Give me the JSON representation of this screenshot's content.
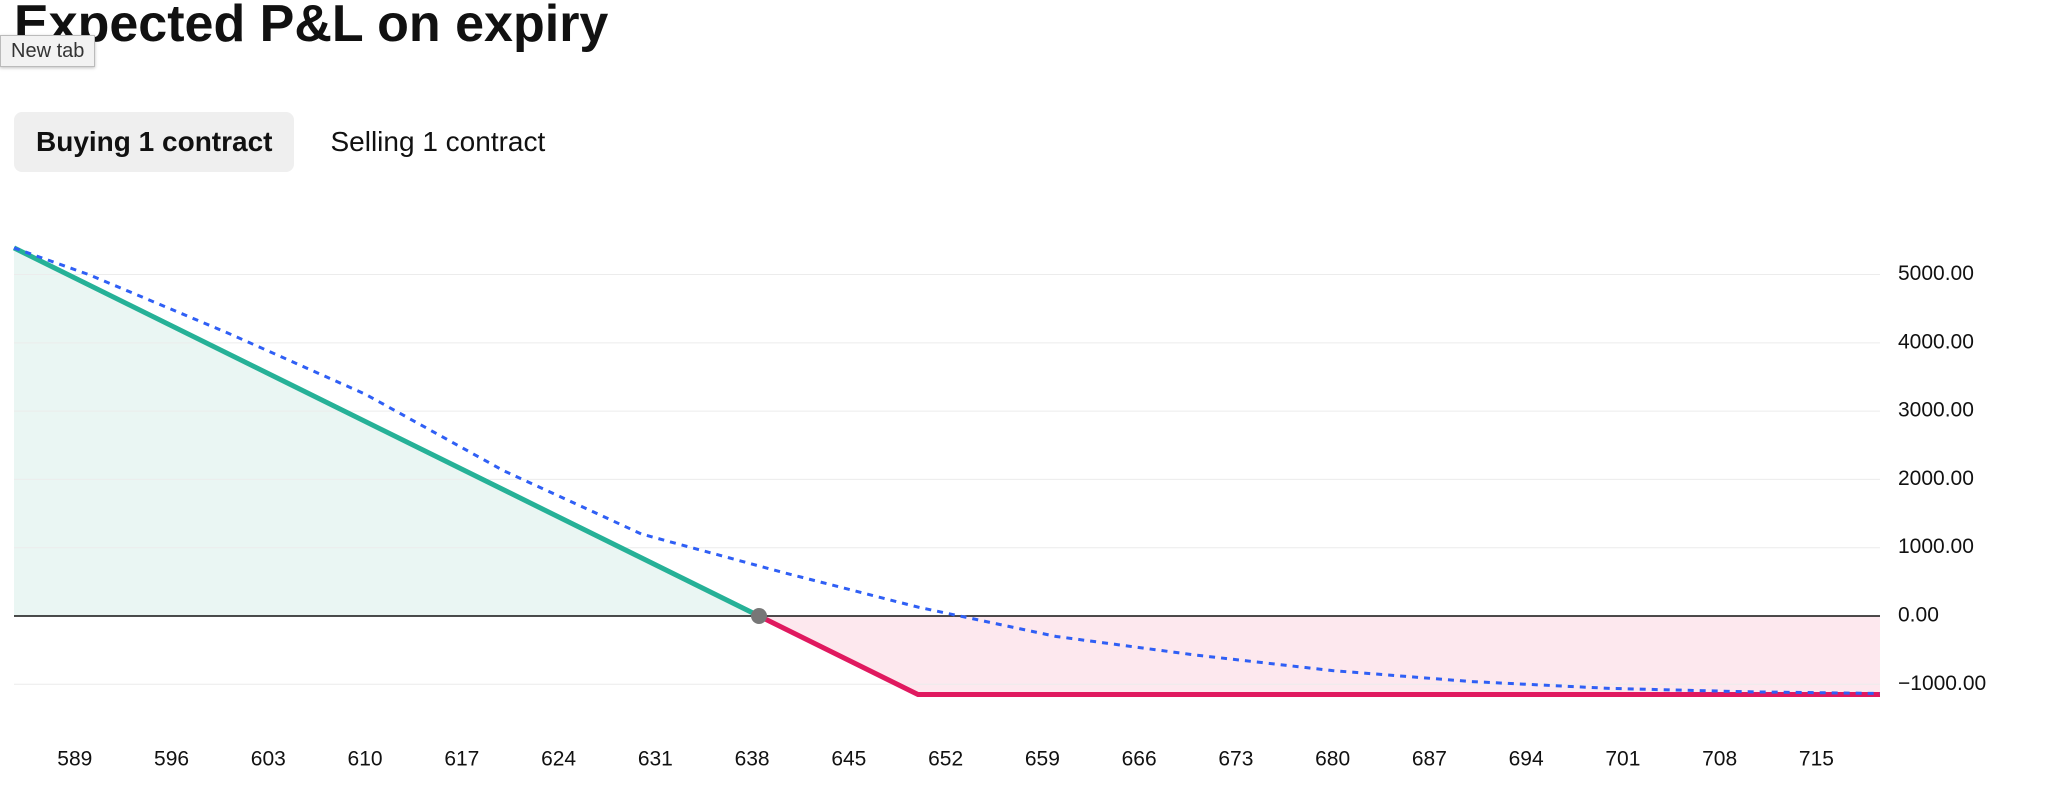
{
  "header": {
    "title": "Expected P&L on expiry",
    "tooltip": "New tab"
  },
  "tabs": [
    "Buying 1 contract",
    "Selling 1 contract"
  ],
  "chart_data": {
    "type": "line",
    "xlim": [
      584.6,
      719.6
    ],
    "xticks": [
      589,
      596,
      603,
      610,
      617,
      624,
      631,
      638,
      645,
      652,
      659,
      666,
      673,
      680,
      687,
      694,
      701,
      708,
      715
    ],
    "ylim": [
      -1450,
      5550
    ],
    "yticks": [
      {
        "value": -1000,
        "label": "−1000.00"
      },
      {
        "value": 0,
        "label": "0.00"
      },
      {
        "value": 1000,
        "label": "1000.00"
      },
      {
        "value": 2000,
        "label": "2000.00"
      },
      {
        "value": 3000,
        "label": "3000.00"
      },
      {
        "value": 4000,
        "label": "4000.00"
      },
      {
        "value": 5000,
        "label": "5000.00"
      }
    ],
    "grid": true,
    "series": [
      {
        "color": "#26b197",
        "fill": "#eaf6f3",
        "x": [
          584.6,
          638.5
        ],
        "values": [
          5390,
          0
        ]
      },
      {
        "color": "#e0195f",
        "fill": "#fde8ee",
        "x": [
          638.5,
          650,
          719.6
        ],
        "values": [
          0,
          -1150,
          -1150
        ]
      },
      {
        "color": "#2f5ff5",
        "dashed": true,
        "x": [
          584.6,
          590,
          600,
          610,
          620,
          630,
          640,
          650,
          660,
          670,
          680,
          690,
          700,
          710,
          719.6
        ],
        "values": [
          5390,
          5000,
          4150,
          3250,
          2130,
          1200,
          650,
          130,
          -300,
          -570,
          -800,
          -960,
          -1060,
          -1110,
          -1135
        ]
      }
    ],
    "markers": [
      {
        "x": 638.5,
        "y": 0,
        "color": "#777"
      }
    ]
  }
}
